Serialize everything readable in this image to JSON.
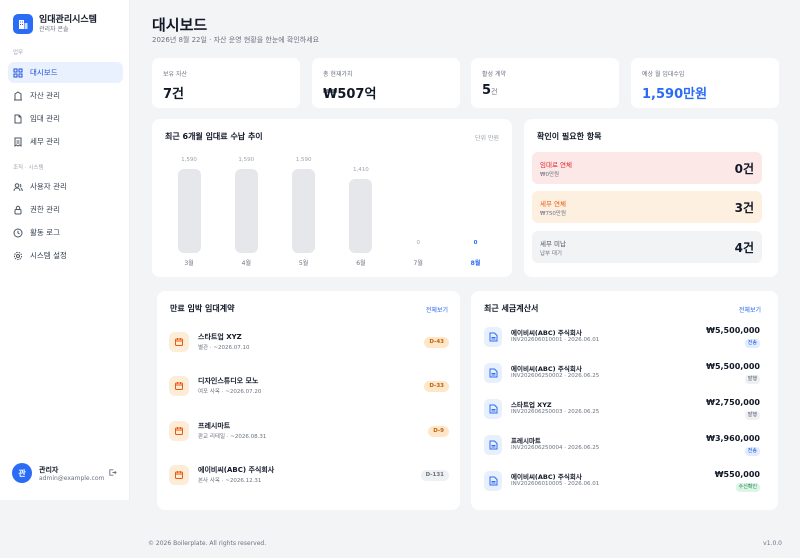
{
  "brand": {
    "title": "임대관리시스템",
    "subtitle": "관리자 콘솔"
  },
  "sidebar": {
    "section1": "업무",
    "section2": "조직 · 시스템",
    "items": [
      {
        "label": "대시보드",
        "icon": "grid-icon",
        "active": true
      },
      {
        "label": "자산 관리",
        "icon": "building-icon"
      },
      {
        "label": "임대 관리",
        "icon": "document-icon"
      },
      {
        "label": "세무 관리",
        "icon": "receipt-icon"
      },
      {
        "label": "사용자 관리",
        "icon": "users-icon"
      },
      {
        "label": "권한 관리",
        "icon": "lock-icon"
      },
      {
        "label": "활동 로그",
        "icon": "clock-icon"
      },
      {
        "label": "시스템 설정",
        "icon": "gear-icon"
      }
    ],
    "user": {
      "initial": "관",
      "name": "관리자",
      "email": "admin@example.com"
    }
  },
  "header": {
    "title": "대시보드",
    "subtitle": "2026년 8월 22일 · 자산 운영 현황을 한눈에 확인하세요"
  },
  "stats": [
    {
      "label": "보유 자산",
      "value": "7",
      "unit": "건"
    },
    {
      "label": "총 현재가치",
      "value": "₩507억",
      "unit": ""
    },
    {
      "label": "활성 계약",
      "value": "5",
      "unit": "건"
    },
    {
      "label": "예상 월 임대수입",
      "value": "1,590만원",
      "unit": ""
    }
  ],
  "chart_panel": {
    "title": "최근 6개월 임대료 수납 추이",
    "unit_label": "단위 만원"
  },
  "chart_data": {
    "type": "bar",
    "title": "최근 6개월 임대료 수납 추이",
    "categories": [
      "3월",
      "4월",
      "5월",
      "6월",
      "7월",
      "8월"
    ],
    "values": [
      1590,
      1590,
      1590,
      1410,
      0,
      0
    ],
    "value_labels": [
      "1,590",
      "1,590",
      "1,590",
      "1,410",
      "0",
      "0"
    ],
    "highlight_index": 5,
    "ylim": [
      0,
      1590
    ],
    "grid": false,
    "legend": "none"
  },
  "attention": {
    "title": "확인이 필요한 항목",
    "items": [
      {
        "label": "임대료 연체",
        "sub": "₩0만원",
        "count": "0건"
      },
      {
        "label": "세무 연체",
        "sub": "₩750만원",
        "count": "3건"
      },
      {
        "label": "세무 미납",
        "sub": "납부 대기",
        "count": "4건"
      }
    ]
  },
  "leases": {
    "title": "만료 임박 임대계약",
    "link": "전체보기",
    "items": [
      {
        "name": "스타트업 XYZ",
        "sub": "별관 · ~2026.07.10",
        "badge": "D-43"
      },
      {
        "name": "디자인스튜디오 모노",
        "sub": "여포 사옥 · ~2026.07.20",
        "badge": "D-33"
      },
      {
        "name": "프레시마트",
        "sub": "판교 리테일 · ~2026.08.31",
        "badge": "D-9"
      },
      {
        "name": "에이비씨(ABC) 주식회사",
        "sub": "본사 사옥 · ~2026.12.31",
        "badge": "D-131"
      }
    ]
  },
  "invoices": {
    "title": "최근 세금계산서",
    "link": "전체보기",
    "items": [
      {
        "name": "에이비씨(ABC) 주식회사",
        "sub": "INV202606010001 · 2026.06.01",
        "amount": "₩5,500,000",
        "status": "전송"
      },
      {
        "name": "에이비씨(ABC) 주식회사",
        "sub": "INV202606250002 · 2026.06.25",
        "amount": "₩5,500,000",
        "status": "발행"
      },
      {
        "name": "스타트업 XYZ",
        "sub": "INV202606250003 · 2026.06.25",
        "amount": "₩2,750,000",
        "status": "발행"
      },
      {
        "name": "프레시마트",
        "sub": "INV202606250004 · 2026.06.25",
        "amount": "₩3,960,000",
        "status": "전송"
      },
      {
        "name": "에이비씨(ABC) 주식회사",
        "sub": "INV202606010005 · 2026.06.01",
        "amount": "₩550,000",
        "status": "수신확인"
      }
    ]
  },
  "footer": {
    "copyright": "© 2026 Boilerplate. All rights reserved.",
    "version": "v1.0.0"
  },
  "colors": {
    "accent": "#2b6cf6",
    "danger_bg": "#fde8e8",
    "danger_text": "#dc2626",
    "warn_bg": "#fdf0e0",
    "warn_text": "#ea580c",
    "neutral_bg": "#f1f3f5"
  }
}
